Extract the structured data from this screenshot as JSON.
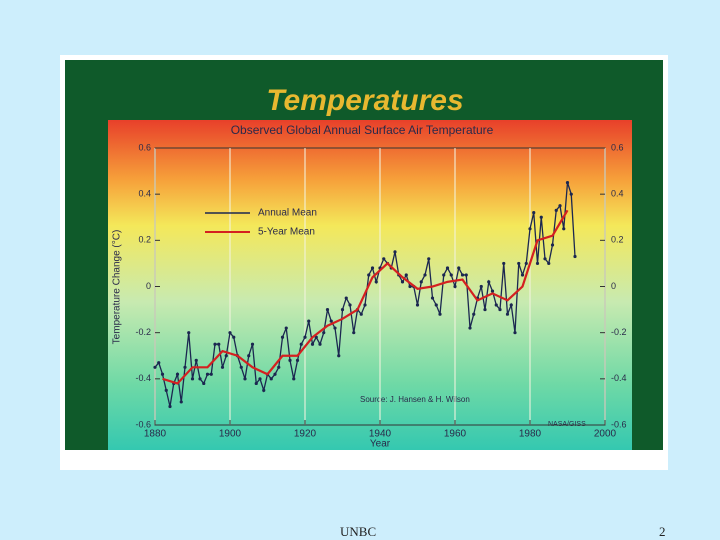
{
  "chart_data": {
    "type": "line",
    "title": "Temperatures",
    "subtitle": "Observed Global Annual Surface Air Temperature",
    "x_label": "Year",
    "y_label": "Temperature Change (°C)",
    "annotations": [
      "Source: J. Hansen & H. Wilson",
      "NASA/GISS"
    ],
    "xlim": [
      1880,
      2000
    ],
    "xticks": [
      1880,
      1900,
      1920,
      1940,
      1960,
      1980,
      2000
    ],
    "ylim": [
      -0.6,
      0.6
    ],
    "yticks": [
      -0.6,
      -0.4,
      -0.2,
      0,
      0.2,
      0.4,
      0.6
    ],
    "y2lim": [
      -0.6,
      0.6
    ],
    "y2ticks": [
      -0.6,
      -0.4,
      -0.2,
      0,
      0.2,
      0.4,
      0.6
    ],
    "xgrid": true,
    "series": [
      {
        "name": "Annual Mean",
        "color": "#1b2750",
        "markers": true,
        "x": [
          1880,
          1881,
          1882,
          1883,
          1884,
          1885,
          1886,
          1887,
          1888,
          1889,
          1890,
          1891,
          1892,
          1893,
          1894,
          1895,
          1896,
          1897,
          1898,
          1899,
          1900,
          1901,
          1902,
          1903,
          1904,
          1905,
          1906,
          1907,
          1908,
          1909,
          1910,
          1911,
          1912,
          1913,
          1914,
          1915,
          1916,
          1917,
          1918,
          1919,
          1920,
          1921,
          1922,
          1923,
          1924,
          1925,
          1926,
          1927,
          1928,
          1929,
          1930,
          1931,
          1932,
          1933,
          1934,
          1935,
          1936,
          1937,
          1938,
          1939,
          1940,
          1941,
          1942,
          1943,
          1944,
          1945,
          1946,
          1947,
          1948,
          1949,
          1950,
          1951,
          1952,
          1953,
          1954,
          1955,
          1956,
          1957,
          1958,
          1959,
          1960,
          1961,
          1962,
          1963,
          1964,
          1965,
          1966,
          1967,
          1968,
          1969,
          1970,
          1971,
          1972,
          1973,
          1974,
          1975,
          1976,
          1977,
          1978,
          1979,
          1980,
          1981,
          1982,
          1983,
          1984,
          1985,
          1986,
          1987,
          1988,
          1989,
          1990,
          1991,
          1992
        ],
        "values": [
          -0.35,
          -0.33,
          -0.38,
          -0.45,
          -0.52,
          -0.42,
          -0.38,
          -0.5,
          -0.35,
          -0.2,
          -0.4,
          -0.32,
          -0.4,
          -0.42,
          -0.38,
          -0.38,
          -0.25,
          -0.25,
          -0.35,
          -0.3,
          -0.2,
          -0.22,
          -0.3,
          -0.35,
          -0.4,
          -0.3,
          -0.25,
          -0.42,
          -0.4,
          -0.45,
          -0.38,
          -0.4,
          -0.38,
          -0.35,
          -0.22,
          -0.18,
          -0.32,
          -0.4,
          -0.32,
          -0.25,
          -0.22,
          -0.15,
          -0.25,
          -0.22,
          -0.25,
          -0.2,
          -0.1,
          -0.15,
          -0.18,
          -0.3,
          -0.1,
          -0.05,
          -0.08,
          -0.2,
          -0.1,
          -0.12,
          -0.08,
          0.05,
          0.08,
          0.02,
          0.08,
          0.12,
          0.1,
          0.08,
          0.15,
          0.05,
          0.02,
          0.05,
          0,
          0,
          -0.08,
          0.02,
          0.05,
          0.12,
          -0.05,
          -0.08,
          -0.12,
          0.05,
          0.08,
          0.05,
          0,
          0.08,
          0.05,
          0.05,
          -0.18,
          -0.12,
          -0.05,
          0,
          -0.1,
          0.02,
          -0.02,
          -0.08,
          -0.1,
          0.1,
          -0.12,
          -0.08,
          -0.2,
          0.1,
          0.05,
          0.1,
          0.25,
          0.32,
          0.1,
          0.3,
          0.12,
          0.1,
          0.18,
          0.33,
          0.35,
          0.25,
          0.45,
          0.4,
          0.13
        ]
      },
      {
        "name": "5-Year Mean",
        "color": "#d42020",
        "markers": false,
        "x": [
          1882,
          1886,
          1890,
          1894,
          1898,
          1902,
          1906,
          1910,
          1914,
          1918,
          1922,
          1926,
          1930,
          1934,
          1938,
          1942,
          1946,
          1950,
          1954,
          1958,
          1962,
          1966,
          1970,
          1974,
          1978,
          1982,
          1986,
          1990
        ],
        "values": [
          -0.4,
          -0.42,
          -0.35,
          -0.35,
          -0.28,
          -0.3,
          -0.35,
          -0.38,
          -0.3,
          -0.3,
          -0.22,
          -0.17,
          -0.14,
          -0.1,
          0.04,
          0.1,
          0.04,
          -0.01,
          0,
          0.02,
          0.03,
          -0.06,
          -0.03,
          -0.06,
          0,
          0.2,
          0.22,
          0.33
        ]
      }
    ]
  },
  "footer": {
    "left": "UNBC",
    "page": "2"
  }
}
